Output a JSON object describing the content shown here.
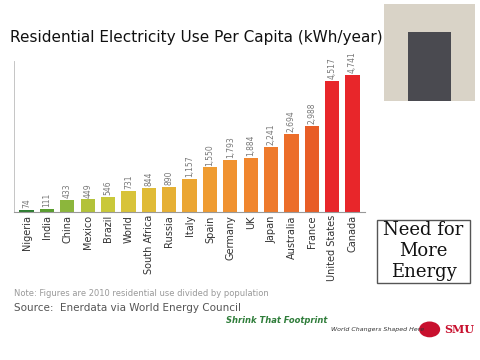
{
  "chart_data": {
    "type": "bar",
    "title": "Residential Electricity Use Per Capita (kWh/year)",
    "categories": [
      "Nigeria",
      "India",
      "China",
      "Mexico",
      "Brazil",
      "World",
      "South Africa",
      "Russia",
      "Italy",
      "Spain",
      "Germany",
      "UK",
      "Japan",
      "Australia",
      "France",
      "United States",
      "Canada"
    ],
    "values": [
      74,
      111,
      433,
      449,
      546,
      731,
      844,
      890,
      1157,
      1550,
      1793,
      1884,
      2241,
      2694,
      2988,
      4517,
      4741
    ],
    "value_labels": [
      "74",
      "111",
      "433",
      "449",
      "546",
      "731",
      "844",
      "890",
      "1,157",
      "1,550",
      "1,793",
      "1,884",
      "2,241",
      "2,694",
      "2,988",
      "4,517",
      "4,741"
    ],
    "colors": [
      "#2e7d32",
      "#5a9e2f",
      "#8cb63c",
      "#b3c23a",
      "#c9c83a",
      "#d8c33a",
      "#e0bb36",
      "#e6b034",
      "#eba633",
      "#ef9c32",
      "#f09230",
      "#f0862e",
      "#ee7a2c",
      "#ec6d29",
      "#e85d26",
      "#e8262a",
      "#e8262a"
    ],
    "ylim": [
      0,
      5200
    ],
    "data_labels": true,
    "tick_labels": "x",
    "annotations": [
      "Note: Figures are 2010 residential use divided by population",
      "Source:  Enerdata via World Energy Council",
      "Need for More Energy",
      "Shrink That Footprint",
      "World Changers Shaped Here",
      "SMU"
    ]
  }
}
